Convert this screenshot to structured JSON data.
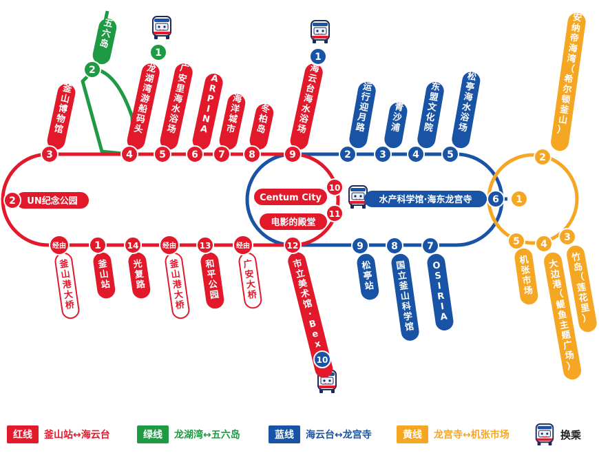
{
  "colors": {
    "red": "#e2192b",
    "green": "#1f9a44",
    "blue": "#1953a5",
    "orange": "#f5a623"
  },
  "red_line": {
    "top": [
      {
        "num": "3",
        "label": "釜山博物馆"
      },
      {
        "num": "4",
        "label": "龙湖湾游船码头"
      },
      {
        "num": "5",
        "label": "广安里海水浴场"
      },
      {
        "num": "6",
        "label": "ARPINA"
      },
      {
        "num": "7",
        "label": "海洋城市"
      },
      {
        "num": "8",
        "label": "冬柏岛"
      },
      {
        "num": "9",
        "label": "海云台海水浴场"
      }
    ],
    "left": {
      "num": "2",
      "label": "UN纪念公园"
    },
    "bottom": [
      {
        "num": "经由",
        "label": "釜山港大桥"
      },
      {
        "num": "1",
        "label": "釜山站"
      },
      {
        "num": "14",
        "label": "光复路"
      },
      {
        "num": "经由",
        "label": "釜山港大桥"
      },
      {
        "num": "13",
        "label": "和平公园"
      },
      {
        "num": "经由",
        "label": "广安大桥"
      },
      {
        "num": "12",
        "label": "市立美术馆·Bexco"
      }
    ],
    "inner": [
      {
        "num": "10",
        "label": "Centum City"
      },
      {
        "num": "11",
        "label": "电影的殿堂"
      }
    ]
  },
  "green_line": [
    {
      "num": "1",
      "label": ""
    },
    {
      "num": "2",
      "label": "五六岛"
    }
  ],
  "blue_line": {
    "top": [
      {
        "num": "1",
        "label": ""
      },
      {
        "num": "2",
        "label": "运行迎月路"
      },
      {
        "num": "3",
        "label": "青沙浦"
      },
      {
        "num": "4",
        "label": "东盟文化院"
      },
      {
        "num": "5",
        "label": "松亭海水浴场"
      }
    ],
    "right": {
      "num": "6",
      "label": "水产科学馆·海东龙宫寺"
    },
    "bottom": [
      {
        "num": "7",
        "label": "OSIRIA"
      },
      {
        "num": "8",
        "label": "国立釜山科学馆"
      },
      {
        "num": "9",
        "label": "松亭站"
      },
      {
        "num": "10",
        "label": ""
      }
    ]
  },
  "yellow_line": [
    {
      "num": "1",
      "label": ""
    },
    {
      "num": "2",
      "label": "安纳帝海湾（希尔顿釜山）"
    },
    {
      "num": "3",
      "label": "竹岛（莲花里）"
    },
    {
      "num": "4",
      "label": "大边港（鳀鱼主题广场）"
    },
    {
      "num": "5",
      "label": "机张市场"
    }
  ],
  "legend": [
    {
      "tag": "红线",
      "route": "釜山站↔海云台"
    },
    {
      "tag": "绿线",
      "route": "龙湖湾↔五六岛"
    },
    {
      "tag": "蓝线",
      "route": "海云台↔龙宫寺"
    },
    {
      "tag": "黄线",
      "route": "龙宫寺↔机张市场"
    }
  ],
  "transfer_label": "换乘",
  "icons": {
    "transfer": "bus-icon"
  }
}
